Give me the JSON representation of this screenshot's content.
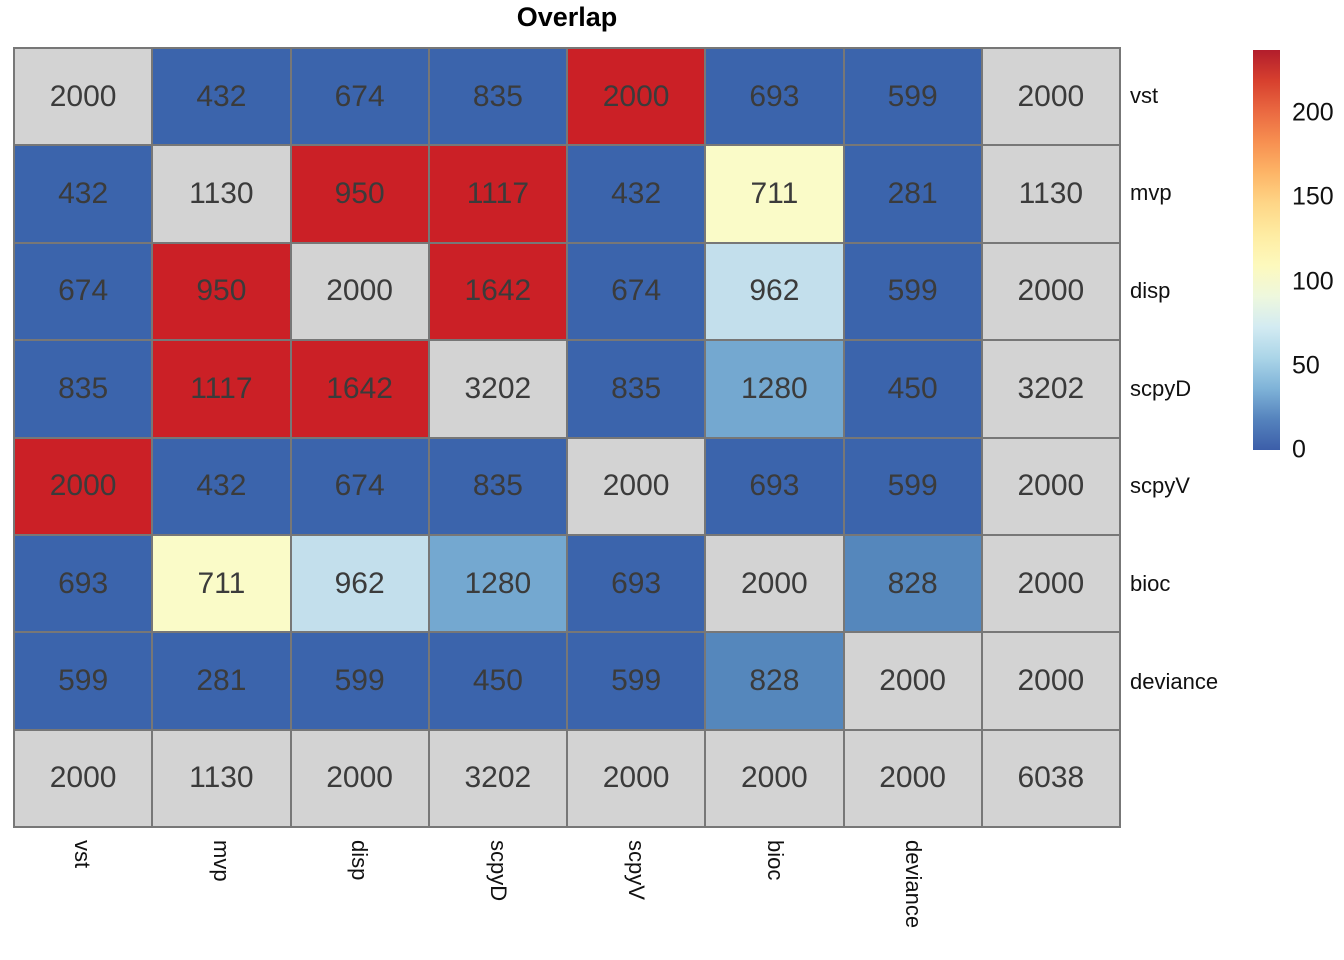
{
  "title": "Overlap",
  "chart_data": {
    "type": "heatmap",
    "title": "Overlap",
    "row_labels": [
      "vst",
      "mvp",
      "disp",
      "scpyD",
      "scpyV",
      "bioc",
      "deviance",
      ""
    ],
    "col_labels": [
      "vst",
      "mvp",
      "disp",
      "scpyD",
      "scpyV",
      "bioc",
      "deviance",
      ""
    ],
    "values": [
      [
        2000,
        432,
        674,
        835,
        2000,
        693,
        599,
        2000
      ],
      [
        432,
        1130,
        950,
        1117,
        432,
        711,
        281,
        1130
      ],
      [
        674,
        950,
        2000,
        1642,
        674,
        962,
        599,
        2000
      ],
      [
        835,
        1117,
        1642,
        3202,
        835,
        1280,
        450,
        3202
      ],
      [
        2000,
        432,
        674,
        835,
        2000,
        693,
        599,
        2000
      ],
      [
        693,
        711,
        962,
        1280,
        693,
        2000,
        828,
        2000
      ],
      [
        599,
        281,
        599,
        450,
        599,
        828,
        2000,
        2000
      ],
      [
        2000,
        1130,
        2000,
        3202,
        2000,
        2000,
        2000,
        6038
      ]
    ],
    "cell_colors": [
      [
        "#d3d3d3",
        "#3b64ac",
        "#3b64ac",
        "#3b64ac",
        "#cb2026",
        "#3b64ac",
        "#3b64ac",
        "#d3d3d3"
      ],
      [
        "#3b64ac",
        "#d3d3d3",
        "#cb2026",
        "#cb2026",
        "#3b64ac",
        "#fafbc8",
        "#3b64ac",
        "#d3d3d3"
      ],
      [
        "#3b64ac",
        "#cb2026",
        "#d3d3d3",
        "#cb2026",
        "#3b64ac",
        "#c3dfec",
        "#3b64ac",
        "#d3d3d3"
      ],
      [
        "#3b64ac",
        "#cb2026",
        "#cb2026",
        "#d3d3d3",
        "#3b64ac",
        "#74a8d0",
        "#3b64ac",
        "#d3d3d3"
      ],
      [
        "#cb2026",
        "#3b64ac",
        "#3b64ac",
        "#3b64ac",
        "#d3d3d3",
        "#3b64ac",
        "#3b64ac",
        "#d3d3d3"
      ],
      [
        "#3b64ac",
        "#fafbc8",
        "#c3dfec",
        "#74a8d0",
        "#3b64ac",
        "#d3d3d3",
        "#5587bc",
        "#d3d3d3"
      ],
      [
        "#3b64ac",
        "#3b64ac",
        "#3b64ac",
        "#3b64ac",
        "#3b64ac",
        "#5587bc",
        "#d3d3d3",
        "#d3d3d3"
      ],
      [
        "#d3d3d3",
        "#d3d3d3",
        "#d3d3d3",
        "#d3d3d3",
        "#d3d3d3",
        "#d3d3d3",
        "#d3d3d3",
        "#d3d3d3"
      ]
    ],
    "palette": {
      "diagonal_gray": "#d3d3d3",
      "low_blue": "#3b64ac",
      "high_red": "#cb2026",
      "pale_yellow": "#fafbc8",
      "light_blue": "#c3dfec",
      "steel_blue": "#74a8d0",
      "medium_blue": "#5587bc",
      "cell_text": "#3b3b3b",
      "grid_border": "#777777"
    },
    "legend": {
      "position": "right",
      "tick_labels": [
        "200",
        "150",
        "100",
        "50",
        "0"
      ],
      "tick_values": [
        200,
        150,
        100,
        50,
        0
      ],
      "value_range": [
        0,
        237
      ],
      "gradient_top_to_bottom": [
        "#b21d2c",
        "#d7402e",
        "#ea6941",
        "#f79051",
        "#fdb567",
        "#fed687",
        "#feeca2",
        "#fdf9bd",
        "#eef8dd",
        "#d3ebf2",
        "#abd5e8",
        "#7fb3d8",
        "#5583bd",
        "#3c5ea9"
      ]
    },
    "grid_on": false
  }
}
